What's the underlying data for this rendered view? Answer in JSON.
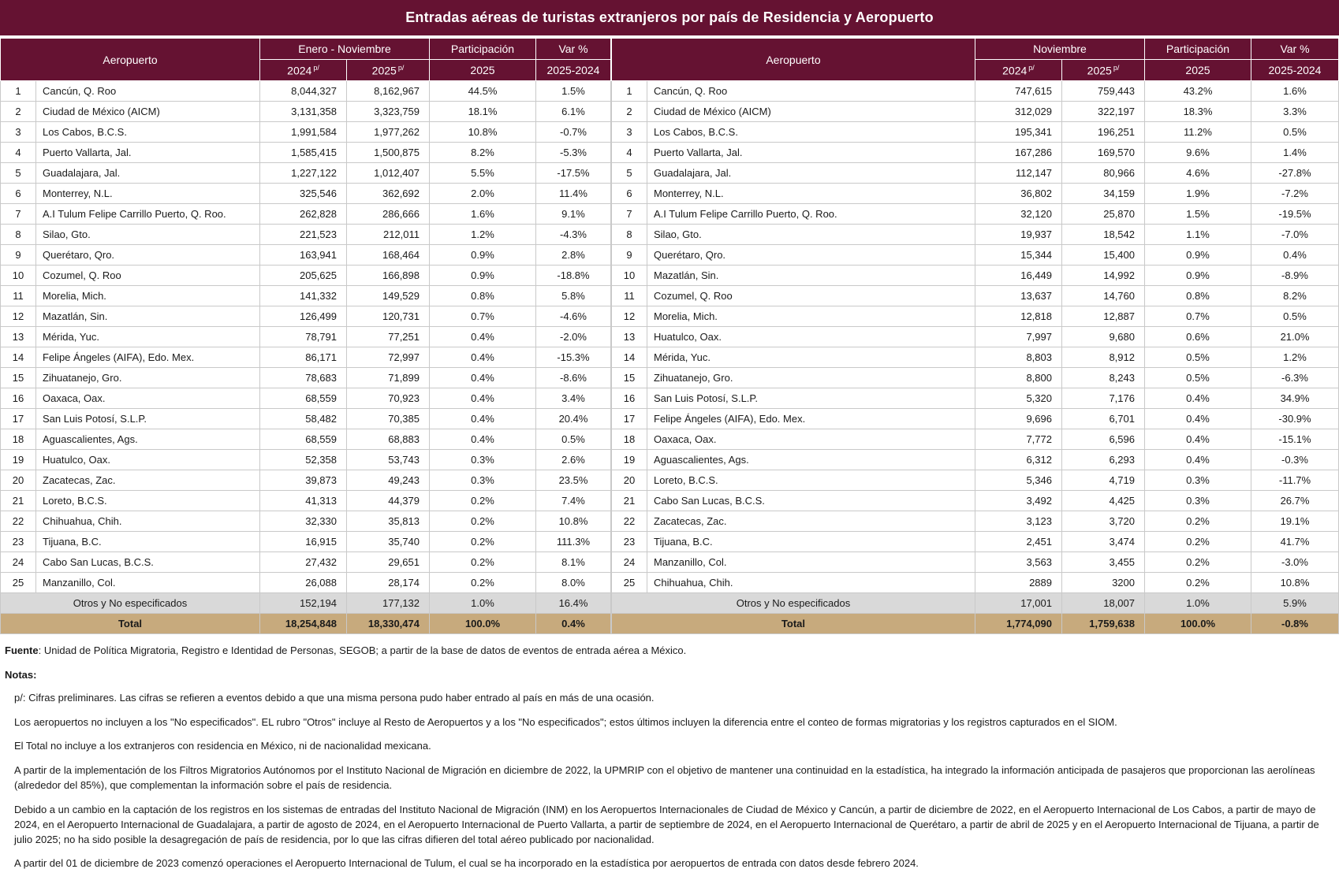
{
  "title": "Entradas aéreas de turistas extranjeros por país de Residencia y Aeropuerto",
  "colors": {
    "header_maroon": "#651232",
    "total_row_tan": "#C7AA7D",
    "otros_row_gray": "#D9D9D9"
  },
  "tables": [
    {
      "period_label": "Enero - Noviembre",
      "headers": {
        "airport": "Aeropuerto",
        "y2024": "2024",
        "y2025": "2025",
        "prelim_mark": "p/",
        "participation_top": "Participación",
        "participation_bottom": "2025",
        "var_top": "Var %",
        "var_bottom": "2025-2024"
      },
      "rows": [
        {
          "rank": "1",
          "airport": "Cancún, Q. Roo",
          "v2024": "8,044,327",
          "v2025": "8,162,967",
          "part": "44.5%",
          "var": "1.5%"
        },
        {
          "rank": "2",
          "airport": "Ciudad de México (AICM)",
          "v2024": "3,131,358",
          "v2025": "3,323,759",
          "part": "18.1%",
          "var": "6.1%"
        },
        {
          "rank": "3",
          "airport": "Los Cabos, B.C.S.",
          "v2024": "1,991,584",
          "v2025": "1,977,262",
          "part": "10.8%",
          "var": "-0.7%"
        },
        {
          "rank": "4",
          "airport": "Puerto Vallarta, Jal.",
          "v2024": "1,585,415",
          "v2025": "1,500,875",
          "part": "8.2%",
          "var": "-5.3%"
        },
        {
          "rank": "5",
          "airport": "Guadalajara, Jal.",
          "v2024": "1,227,122",
          "v2025": "1,012,407",
          "part": "5.5%",
          "var": "-17.5%"
        },
        {
          "rank": "6",
          "airport": "Monterrey, N.L.",
          "v2024": "325,546",
          "v2025": "362,692",
          "part": "2.0%",
          "var": "11.4%"
        },
        {
          "rank": "7",
          "airport": "A.I Tulum Felipe Carrillo Puerto, Q. Roo.",
          "v2024": "262,828",
          "v2025": "286,666",
          "part": "1.6%",
          "var": "9.1%"
        },
        {
          "rank": "8",
          "airport": "Silao, Gto.",
          "v2024": "221,523",
          "v2025": "212,011",
          "part": "1.2%",
          "var": "-4.3%"
        },
        {
          "rank": "9",
          "airport": "Querétaro, Qro.",
          "v2024": "163,941",
          "v2025": "168,464",
          "part": "0.9%",
          "var": "2.8%"
        },
        {
          "rank": "10",
          "airport": "Cozumel, Q. Roo",
          "v2024": "205,625",
          "v2025": "166,898",
          "part": "0.9%",
          "var": "-18.8%"
        },
        {
          "rank": "11",
          "airport": "Morelia, Mich.",
          "v2024": "141,332",
          "v2025": "149,529",
          "part": "0.8%",
          "var": "5.8%"
        },
        {
          "rank": "12",
          "airport": "Mazatlán, Sin.",
          "v2024": "126,499",
          "v2025": "120,731",
          "part": "0.7%",
          "var": "-4.6%"
        },
        {
          "rank": "13",
          "airport": "Mérida, Yuc.",
          "v2024": "78,791",
          "v2025": "77,251",
          "part": "0.4%",
          "var": "-2.0%"
        },
        {
          "rank": "14",
          "airport": "Felipe Ángeles (AIFA), Edo. Mex.",
          "v2024": "86,171",
          "v2025": "72,997",
          "part": "0.4%",
          "var": "-15.3%"
        },
        {
          "rank": "15",
          "airport": "Zihuatanejo, Gro.",
          "v2024": "78,683",
          "v2025": "71,899",
          "part": "0.4%",
          "var": "-8.6%"
        },
        {
          "rank": "16",
          "airport": "Oaxaca, Oax.",
          "v2024": "68,559",
          "v2025": "70,923",
          "part": "0.4%",
          "var": "3.4%"
        },
        {
          "rank": "17",
          "airport": "San Luis Potosí, S.L.P.",
          "v2024": "58,482",
          "v2025": "70,385",
          "part": "0.4%",
          "var": "20.4%"
        },
        {
          "rank": "18",
          "airport": "Aguascalientes, Ags.",
          "v2024": "68,559",
          "v2025": "68,883",
          "part": "0.4%",
          "var": "0.5%"
        },
        {
          "rank": "19",
          "airport": "Huatulco, Oax.",
          "v2024": "52,358",
          "v2025": "53,743",
          "part": "0.3%",
          "var": "2.6%"
        },
        {
          "rank": "20",
          "airport": "Zacatecas, Zac.",
          "v2024": "39,873",
          "v2025": "49,243",
          "part": "0.3%",
          "var": "23.5%"
        },
        {
          "rank": "21",
          "airport": "Loreto, B.C.S.",
          "v2024": "41,313",
          "v2025": "44,379",
          "part": "0.2%",
          "var": "7.4%"
        },
        {
          "rank": "22",
          "airport": "Chihuahua, Chih.",
          "v2024": "32,330",
          "v2025": "35,813",
          "part": "0.2%",
          "var": "10.8%"
        },
        {
          "rank": "23",
          "airport": "Tijuana, B.C.",
          "v2024": "16,915",
          "v2025": "35,740",
          "part": "0.2%",
          "var": "111.3%"
        },
        {
          "rank": "24",
          "airport": "Cabo San Lucas, B.C.S.",
          "v2024": "27,432",
          "v2025": "29,651",
          "part": "0.2%",
          "var": "8.1%"
        },
        {
          "rank": "25",
          "airport": "Manzanillo, Col.",
          "v2024": "26,088",
          "v2025": "28,174",
          "part": "0.2%",
          "var": "8.0%"
        }
      ],
      "otros": {
        "label": "Otros y No especificados",
        "v2024": "152,194",
        "v2025": "177,132",
        "part": "1.0%",
        "var": "16.4%"
      },
      "total": {
        "label": "Total",
        "v2024": "18,254,848",
        "v2025": "18,330,474",
        "part": "100.0%",
        "var": "0.4%"
      }
    },
    {
      "period_label": "Noviembre",
      "headers": {
        "airport": "Aeropuerto",
        "y2024": "2024",
        "y2025": "2025",
        "prelim_mark": "p/",
        "participation_top": "Participación",
        "participation_bottom": "2025",
        "var_top": "Var %",
        "var_bottom": "2025-2024"
      },
      "rows": [
        {
          "rank": "1",
          "airport": "Cancún, Q. Roo",
          "v2024": "747,615",
          "v2025": "759,443",
          "part": "43.2%",
          "var": "1.6%"
        },
        {
          "rank": "2",
          "airport": "Ciudad de México (AICM)",
          "v2024": "312,029",
          "v2025": "322,197",
          "part": "18.3%",
          "var": "3.3%"
        },
        {
          "rank": "3",
          "airport": "Los Cabos, B.C.S.",
          "v2024": "195,341",
          "v2025": "196,251",
          "part": "11.2%",
          "var": "0.5%"
        },
        {
          "rank": "4",
          "airport": "Puerto Vallarta, Jal.",
          "v2024": "167,286",
          "v2025": "169,570",
          "part": "9.6%",
          "var": "1.4%"
        },
        {
          "rank": "5",
          "airport": "Guadalajara, Jal.",
          "v2024": "112,147",
          "v2025": "80,966",
          "part": "4.6%",
          "var": "-27.8%"
        },
        {
          "rank": "6",
          "airport": "Monterrey, N.L.",
          "v2024": "36,802",
          "v2025": "34,159",
          "part": "1.9%",
          "var": "-7.2%"
        },
        {
          "rank": "7",
          "airport": "A.I Tulum Felipe Carrillo Puerto, Q. Roo.",
          "v2024": "32,120",
          "v2025": "25,870",
          "part": "1.5%",
          "var": "-19.5%"
        },
        {
          "rank": "8",
          "airport": "Silao, Gto.",
          "v2024": "19,937",
          "v2025": "18,542",
          "part": "1.1%",
          "var": "-7.0%"
        },
        {
          "rank": "9",
          "airport": "Querétaro, Qro.",
          "v2024": "15,344",
          "v2025": "15,400",
          "part": "0.9%",
          "var": "0.4%"
        },
        {
          "rank": "10",
          "airport": "Mazatlán, Sin.",
          "v2024": "16,449",
          "v2025": "14,992",
          "part": "0.9%",
          "var": "-8.9%"
        },
        {
          "rank": "11",
          "airport": "Cozumel, Q. Roo",
          "v2024": "13,637",
          "v2025": "14,760",
          "part": "0.8%",
          "var": "8.2%"
        },
        {
          "rank": "12",
          "airport": "Morelia, Mich.",
          "v2024": "12,818",
          "v2025": "12,887",
          "part": "0.7%",
          "var": "0.5%"
        },
        {
          "rank": "13",
          "airport": "Huatulco, Oax.",
          "v2024": "7,997",
          "v2025": "9,680",
          "part": "0.6%",
          "var": "21.0%"
        },
        {
          "rank": "14",
          "airport": "Mérida, Yuc.",
          "v2024": "8,803",
          "v2025": "8,912",
          "part": "0.5%",
          "var": "1.2%"
        },
        {
          "rank": "15",
          "airport": "Zihuatanejo, Gro.",
          "v2024": "8,800",
          "v2025": "8,243",
          "part": "0.5%",
          "var": "-6.3%"
        },
        {
          "rank": "16",
          "airport": "San Luis Potosí, S.L.P.",
          "v2024": "5,320",
          "v2025": "7,176",
          "part": "0.4%",
          "var": "34.9%"
        },
        {
          "rank": "17",
          "airport": "Felipe Ángeles (AIFA), Edo. Mex.",
          "v2024": "9,696",
          "v2025": "6,701",
          "part": "0.4%",
          "var": "-30.9%"
        },
        {
          "rank": "18",
          "airport": "Oaxaca, Oax.",
          "v2024": "7,772",
          "v2025": "6,596",
          "part": "0.4%",
          "var": "-15.1%"
        },
        {
          "rank": "19",
          "airport": "Aguascalientes, Ags.",
          "v2024": "6,312",
          "v2025": "6,293",
          "part": "0.4%",
          "var": "-0.3%"
        },
        {
          "rank": "20",
          "airport": "Loreto, B.C.S.",
          "v2024": "5,346",
          "v2025": "4,719",
          "part": "0.3%",
          "var": "-11.7%"
        },
        {
          "rank": "21",
          "airport": "Cabo San Lucas, B.C.S.",
          "v2024": "3,492",
          "v2025": "4,425",
          "part": "0.3%",
          "var": "26.7%"
        },
        {
          "rank": "22",
          "airport": "Zacatecas, Zac.",
          "v2024": "3,123",
          "v2025": "3,720",
          "part": "0.2%",
          "var": "19.1%"
        },
        {
          "rank": "23",
          "airport": "Tijuana, B.C.",
          "v2024": "2,451",
          "v2025": "3,474",
          "part": "0.2%",
          "var": "41.7%"
        },
        {
          "rank": "24",
          "airport": "Manzanillo, Col.",
          "v2024": "3,563",
          "v2025": "3,455",
          "part": "0.2%",
          "var": "-3.0%"
        },
        {
          "rank": "25",
          "airport": "Chihuahua, Chih.",
          "v2024": "2889",
          "v2025": "3200",
          "part": "0.2%",
          "var": "10.8%"
        }
      ],
      "otros": {
        "label": "Otros y No especificados",
        "v2024": "17,001",
        "v2025": "18,007",
        "part": "1.0%",
        "var": "5.9%"
      },
      "total": {
        "label": "Total",
        "v2024": "1,774,090",
        "v2025": "1,759,638",
        "part": "100.0%",
        "var": "-0.8%"
      }
    }
  ],
  "footer": {
    "fuente_label": "Fuente",
    "fuente_text": ": Unidad de Política Migratoria, Registro e Identidad de Personas, SEGOB; a partir de la base de datos de eventos de entrada aérea a México.",
    "notas_label": "Notas:",
    "notes": [
      "p/: Cifras preliminares.   Las cifras se refieren a eventos debido a que una misma persona pudo haber entrado al país en más de una ocasión.",
      "Los aeropuertos no incluyen a los \"No especificados\".   EL rubro \"Otros\" incluye al Resto de Aeropuertos y a los \"No especificados\"; estos últimos incluyen la diferencia entre el conteo de formas migratorias y los registros capturados en el SIOM.",
      "El Total no  incluye a los extranjeros con residencia en México, ni de nacionalidad mexicana.",
      "A partir de la implementación de los Filtros Migratorios Autónomos por el Instituto Nacional de Migración en diciembre de 2022, la UPMRIP con el objetivo de mantener una continuidad en la estadística, ha integrado la información anticipada de pasajeros que proporcionan las aerolíneas (alrededor del 85%), que complementan la información sobre el país de residencia.",
      "Debido a un cambio en la captación de los registros en los sistemas de entradas del Instituto Nacional de Migración (INM) en los Aeropuertos Internacionales de Ciudad de México y Cancún, a partir de diciembre de 2022, en el Aeropuerto Internacional de Los Cabos, a partir de mayo de 2024, en el Aeropuerto Internacional de Guadalajara, a partir de agosto de 2024, en el Aeropuerto Internacional de Puerto Vallarta, a partir de septiembre de 2024, en el Aeropuerto Internacional de Querétaro, a partir de abril de 2025  y en el Aeropuerto Internacional de Tijuana, a partir de julio 2025; no ha sido posible la desagregación de país de residencia, por lo que las cifras difieren del total aéreo publicado por nacionalidad.",
      "A partir del 01 de diciembre de 2023 comenzó operaciones el Aeropuerto Internacional de Tulum, el cual se ha incorporado en la estadística por aeropuertos de entrada con datos desde febrero 2024."
    ]
  }
}
